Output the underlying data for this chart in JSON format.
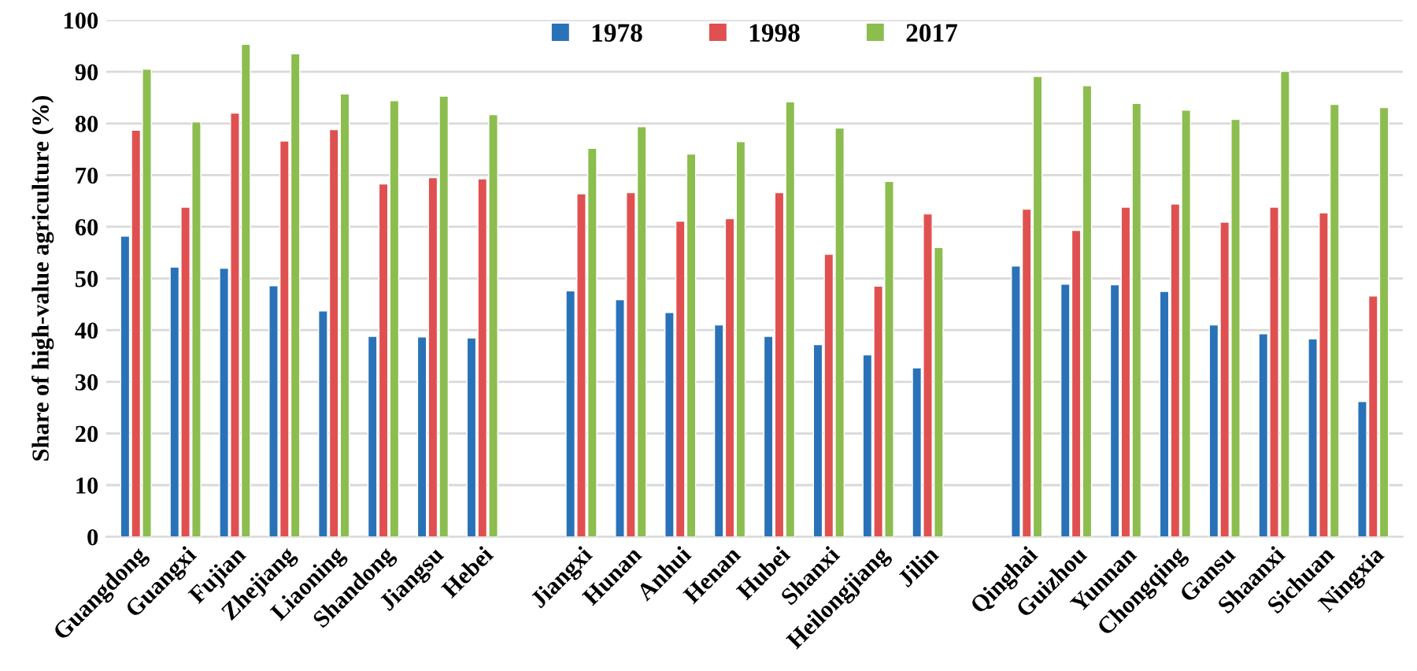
{
  "chart_data": {
    "type": "bar",
    "ylabel": "Share of high-value agriculture (%)",
    "categories": [
      "Guangdong",
      "Guangxi",
      "Fujian",
      "Zhejiang",
      "Liaoning",
      "Shandong",
      "Jiangsu",
      "Hebei",
      null,
      "Jiangxi",
      "Hunan",
      "Anhui",
      "Henan",
      "Hubei",
      "Shanxi",
      "Heilongjiang",
      "Jilin",
      null,
      "Qinghai",
      "Guizhou",
      "Yunnan",
      "Chongqing",
      "Gansu",
      "Shaanxi",
      "Sichuan",
      "Ningxia"
    ],
    "series": [
      {
        "name": "1978",
        "color": "#2a72b8",
        "values": [
          58.2,
          52.2,
          52.0,
          48.6,
          43.7,
          38.8,
          38.7,
          38.5,
          null,
          47.6,
          45.9,
          43.4,
          41.0,
          38.8,
          37.2,
          35.2,
          32.7,
          null,
          52.4,
          48.9,
          48.8,
          47.5,
          41.0,
          39.3,
          38.3,
          26.2
        ]
      },
      {
        "name": "1998",
        "color": "#e05050",
        "values": [
          78.7,
          63.8,
          82.0,
          76.6,
          78.8,
          68.3,
          69.5,
          69.3,
          null,
          66.4,
          66.6,
          61.1,
          61.6,
          66.6,
          54.7,
          48.5,
          62.5,
          null,
          63.4,
          59.3,
          63.8,
          64.4,
          60.9,
          63.8,
          62.7,
          46.6
        ]
      },
      {
        "name": "2017",
        "color": "#8cbd4f",
        "values": [
          90.5,
          80.3,
          95.3,
          93.5,
          85.7,
          84.4,
          85.3,
          81.7,
          null,
          75.2,
          79.4,
          74.1,
          76.5,
          84.2,
          79.1,
          68.8,
          56.0,
          null,
          89.1,
          87.3,
          83.9,
          82.6,
          80.8,
          90.1,
          83.7,
          83.1
        ]
      }
    ],
    "ylim": [
      0,
      100
    ],
    "yticks": [
      0,
      10,
      20,
      30,
      40,
      50,
      60,
      70,
      80,
      90,
      100
    ],
    "grid": "y",
    "legend": "top"
  }
}
